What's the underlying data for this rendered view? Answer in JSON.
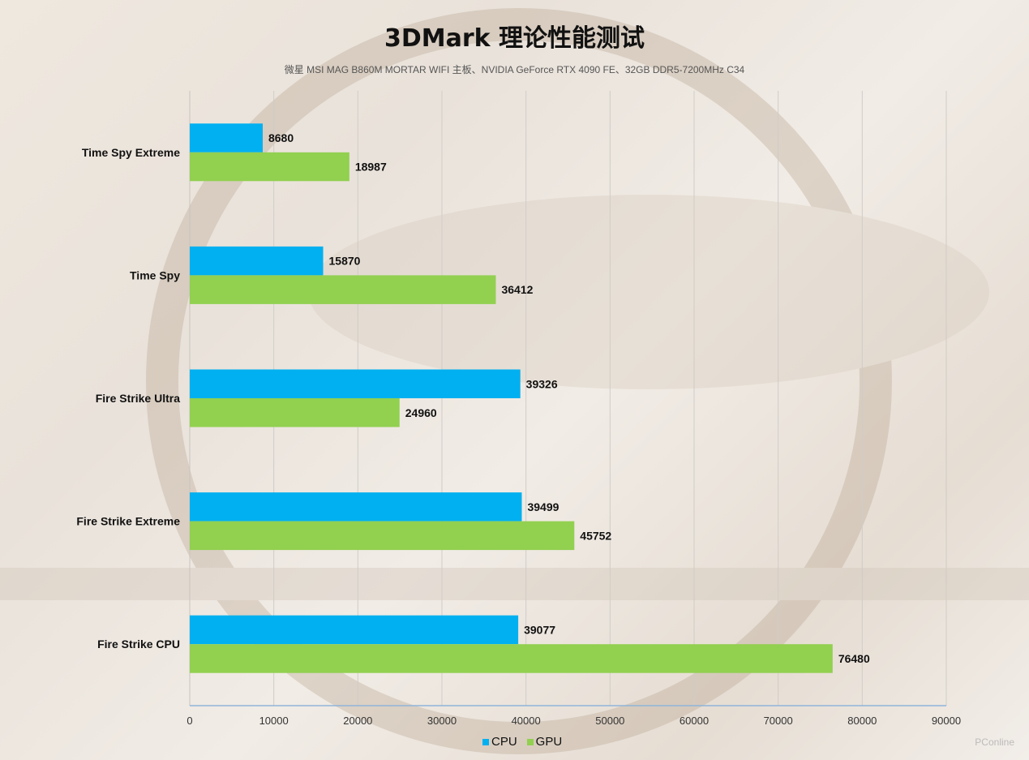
{
  "chart_data": {
    "type": "bar",
    "orientation": "horizontal",
    "title": "3DMark 理论性能测试",
    "subtitle": "微星 MSI MAG B860M MORTAR WIFI 主板、NVIDIA GeForce RTX 4090 FE、32GB DDR5-7200MHz  C34",
    "categories": [
      "Time Spy Extreme",
      "Time Spy",
      "Fire Strike Ultra",
      "Fire Strike Extreme",
      "Fire Strike CPU"
    ],
    "series": [
      {
        "name": "CPU",
        "color": "#00b0f0",
        "values": [
          8680,
          15870,
          39326,
          39499,
          39077
        ]
      },
      {
        "name": "GPU",
        "color": "#92d050",
        "values": [
          18987,
          36412,
          24960,
          45752,
          76480
        ]
      }
    ],
    "xlim": [
      0,
      90000
    ],
    "xticks": [
      "0",
      "10000",
      "20000",
      "30000",
      "40000",
      "50000",
      "60000",
      "70000",
      "80000",
      "90000"
    ],
    "grid": true,
    "legend": "bottom",
    "data_labels": true
  },
  "watermark": "PConline"
}
